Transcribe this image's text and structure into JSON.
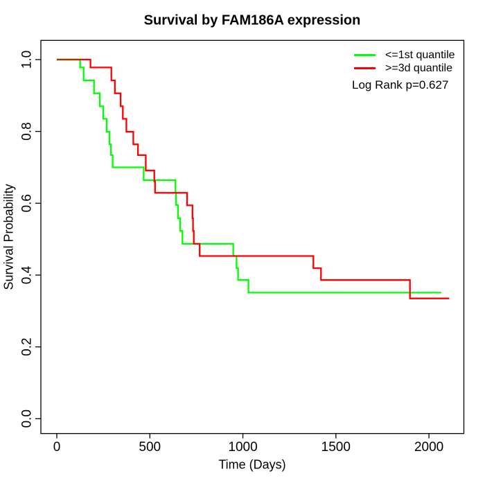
{
  "chart_data": {
    "type": "line",
    "subtype": "kaplan_meier_survival_step",
    "title": "Survival by FAM186A expression",
    "xlabel": "Time (Days)",
    "ylabel": "Survival Probability",
    "annotation": "Log Rank p=0.627",
    "grid": false,
    "legend_position": "top-right",
    "background": "#ffffff",
    "axis_color": "#000000",
    "overlap_color": "#9a3b00",
    "x_axis": {
      "range_days": [
        0,
        2109
      ],
      "ticks": [
        {
          "value": 0,
          "label": "0"
        },
        {
          "value": 500,
          "label": "500"
        },
        {
          "value": 1000,
          "label": "1000"
        },
        {
          "value": 1500,
          "label": "1500"
        },
        {
          "value": 2000,
          "label": "2000"
        }
      ]
    },
    "y_axis": {
      "range": [
        0.0,
        1.0
      ],
      "ticks": [
        {
          "value": 0.0,
          "label": "0.0"
        },
        {
          "value": 0.2,
          "label": "0.2"
        },
        {
          "value": 0.4,
          "label": "0.4"
        },
        {
          "value": 0.6,
          "label": "0.6"
        },
        {
          "value": 0.8,
          "label": "0.8"
        },
        {
          "value": 1.0,
          "label": "1.0"
        }
      ]
    },
    "series": [
      {
        "name": "<=1st quantile",
        "color": "#00ff00",
        "points": [
          [
            0,
            1.0
          ],
          [
            125,
            0.978
          ],
          [
            144,
            0.942
          ],
          [
            200,
            0.906
          ],
          [
            231,
            0.87
          ],
          [
            250,
            0.835
          ],
          [
            268,
            0.799
          ],
          [
            283,
            0.764
          ],
          [
            291,
            0.734
          ],
          [
            300,
            0.7
          ],
          [
            467,
            0.664
          ],
          [
            638,
            0.63
          ],
          [
            641,
            0.595
          ],
          [
            651,
            0.558
          ],
          [
            663,
            0.523
          ],
          [
            675,
            0.487
          ],
          [
            948,
            0.453
          ],
          [
            966,
            0.419
          ],
          [
            974,
            0.386
          ],
          [
            1030,
            0.351
          ],
          [
            2066,
            0.351
          ]
        ]
      },
      {
        "name": ">=3d quantile",
        "color": "#ff0000",
        "points": [
          [
            0,
            1.0
          ],
          [
            181,
            0.978
          ],
          [
            293,
            0.942
          ],
          [
            312,
            0.906
          ],
          [
            343,
            0.87
          ],
          [
            355,
            0.835
          ],
          [
            374,
            0.799
          ],
          [
            411,
            0.764
          ],
          [
            436,
            0.734
          ],
          [
            478,
            0.691
          ],
          [
            524,
            0.661
          ],
          [
            528,
            0.629
          ],
          [
            700,
            0.594
          ],
          [
            729,
            0.558
          ],
          [
            732,
            0.523
          ],
          [
            736,
            0.487
          ],
          [
            768,
            0.453
          ],
          [
            1379,
            0.419
          ],
          [
            1420,
            0.386
          ],
          [
            1898,
            0.335
          ],
          [
            2109,
            0.335
          ]
        ]
      }
    ]
  }
}
